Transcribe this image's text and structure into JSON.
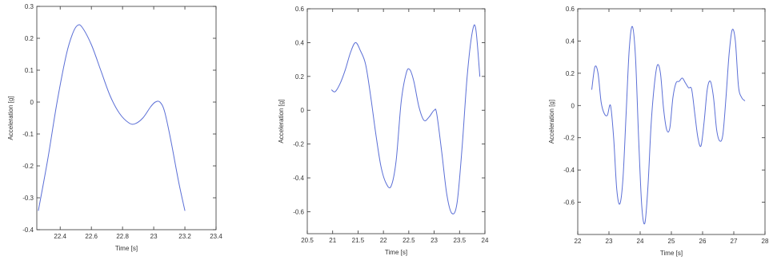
{
  "chart_data": [
    {
      "type": "line",
      "title": "",
      "xlabel": "Time [s]",
      "ylabel": "Acceleration [g]",
      "xlim": [
        22.25,
        23.4
      ],
      "ylim": [
        -0.4,
        0.3
      ],
      "xticks": [
        "22.4",
        "22.6",
        "22.8",
        "23",
        "23.2",
        "23.4"
      ],
      "yticks": [
        "0.3",
        "0.2",
        "0.1",
        "0",
        "-0.1",
        "-0.2",
        "-0.3",
        "-0.4"
      ],
      "line_color": "#5b6fd6",
      "grid": false,
      "series": [
        {
          "x": [
            22.26,
            22.32,
            22.38,
            22.44,
            22.48,
            22.51,
            22.54,
            22.6,
            22.66,
            22.72,
            22.78,
            22.84,
            22.88,
            22.93,
            22.98,
            23.01,
            23.04,
            23.07,
            23.11,
            23.16,
            23.2
          ],
          "y": [
            -0.34,
            -0.18,
            0.0,
            0.15,
            0.215,
            0.24,
            0.235,
            0.18,
            0.1,
            0.02,
            -0.035,
            -0.065,
            -0.068,
            -0.05,
            -0.015,
            0.0,
            0.0,
            -0.03,
            -0.12,
            -0.25,
            -0.34
          ]
        }
      ]
    },
    {
      "type": "line",
      "title": "",
      "xlabel": "Time [s]",
      "ylabel": "Acceleration [g]",
      "xlim": [
        20.5,
        24.0
      ],
      "ylim": [
        -0.73,
        0.6
      ],
      "xticks": [
        "20.5",
        "21",
        "21.5",
        "22",
        "22.5",
        "23",
        "23.5",
        "24"
      ],
      "yticks": [
        "0.6",
        "0.4",
        "0.2",
        "0",
        "-0.2",
        "-0.4",
        "-0.6"
      ],
      "line_color": "#5b6fd6",
      "grid": false,
      "series": [
        {
          "x": [
            20.98,
            21.05,
            21.15,
            21.25,
            21.35,
            21.45,
            21.55,
            21.65,
            21.75,
            21.85,
            21.95,
            22.05,
            22.15,
            22.25,
            22.35,
            22.45,
            22.52,
            22.6,
            22.7,
            22.8,
            22.9,
            23.0,
            23.05,
            23.15,
            23.25,
            23.35,
            23.45,
            23.55,
            23.65,
            23.75,
            23.82,
            23.9
          ],
          "y": [
            0.12,
            0.11,
            0.16,
            0.24,
            0.34,
            0.4,
            0.35,
            0.27,
            0.08,
            -0.14,
            -0.33,
            -0.43,
            -0.45,
            -0.3,
            0.05,
            0.22,
            0.24,
            0.17,
            0.02,
            -0.06,
            -0.04,
            0.0,
            -0.02,
            -0.25,
            -0.5,
            -0.61,
            -0.55,
            -0.22,
            0.2,
            0.46,
            0.48,
            0.2
          ]
        }
      ]
    },
    {
      "type": "line",
      "title": "",
      "xlabel": "Time [s]",
      "ylabel": "Acceleration [g]",
      "xlim": [
        22,
        28
      ],
      "ylim": [
        -0.8,
        0.6
      ],
      "xticks": [
        "22",
        "23",
        "24",
        "25",
        "26",
        "27",
        "28"
      ],
      "yticks": [
        "0.6",
        "0.4",
        "0.2",
        "0",
        "-0.2",
        "-0.4",
        "-0.6"
      ],
      "line_color": "#5b6fd6",
      "grid": false,
      "series": [
        {
          "x": [
            22.45,
            22.55,
            22.65,
            22.75,
            22.85,
            22.95,
            23.05,
            23.15,
            23.25,
            23.35,
            23.45,
            23.55,
            23.65,
            23.75,
            23.85,
            23.95,
            24.05,
            24.15,
            24.25,
            24.35,
            24.45,
            24.55,
            24.65,
            24.75,
            24.85,
            24.95,
            25.05,
            25.15,
            25.25,
            25.35,
            25.45,
            25.55,
            25.65,
            25.75,
            25.85,
            25.95,
            26.05,
            26.15,
            26.25,
            26.35,
            26.45,
            26.55,
            26.65,
            26.75,
            26.85,
            26.95,
            27.05,
            27.15,
            27.25,
            27.35
          ],
          "y": [
            0.1,
            0.24,
            0.2,
            0.02,
            -0.05,
            -0.06,
            0.0,
            -0.2,
            -0.52,
            -0.61,
            -0.45,
            -0.05,
            0.35,
            0.49,
            0.3,
            -0.2,
            -0.62,
            -0.73,
            -0.5,
            -0.12,
            0.12,
            0.25,
            0.2,
            -0.02,
            -0.15,
            -0.14,
            0.05,
            0.14,
            0.15,
            0.17,
            0.14,
            0.11,
            0.1,
            -0.05,
            -0.2,
            -0.25,
            -0.1,
            0.1,
            0.15,
            0.05,
            -0.15,
            -0.22,
            -0.18,
            0.05,
            0.32,
            0.47,
            0.4,
            0.12,
            0.05,
            0.03
          ]
        }
      ]
    }
  ]
}
